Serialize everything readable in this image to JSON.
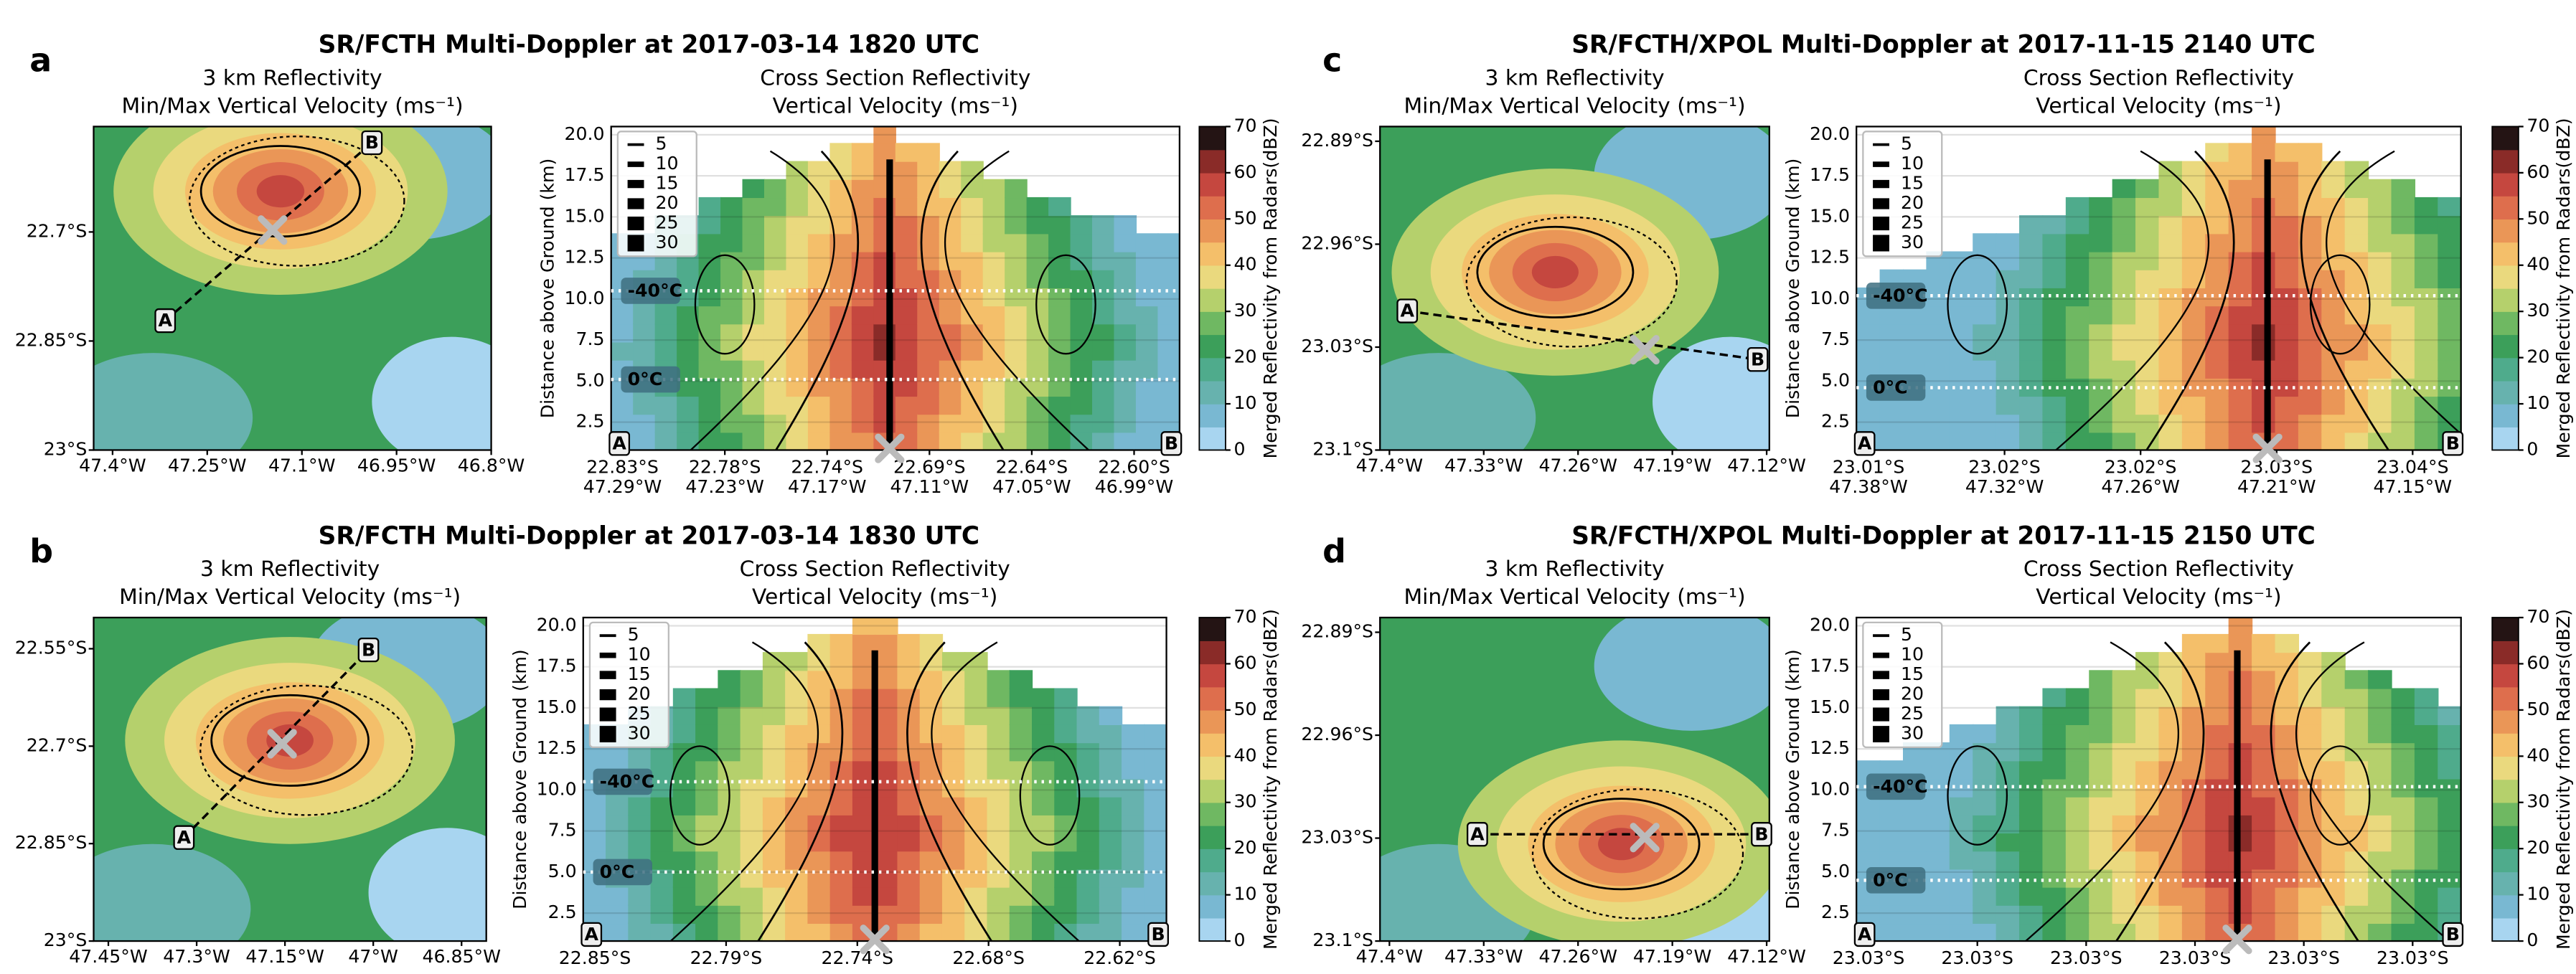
{
  "chart_data": [
    {
      "type": "panel",
      "letter": "a",
      "title": "SR/FCTH Multi-Doppler at 2017-03-14 1820 UTC",
      "map": {
        "subtitle": [
          "3 km Reflectivity",
          "Min/Max Vertical Velocity (ms⁻¹)"
        ],
        "ylim": [
          -23.0,
          -22.555
        ],
        "yticks": [
          {
            "value": -22.7,
            "label": "22.7°S"
          },
          {
            "value": -22.85,
            "label": "22.85°S"
          },
          {
            "value": -23.0,
            "label": "23°S"
          }
        ],
        "xlim": [
          -47.43,
          -46.8
        ],
        "xticks": [
          {
            "value": -47.4,
            "label": "47.4°W"
          },
          {
            "value": -47.25,
            "label": "47.25°W"
          },
          {
            "value": -47.1,
            "label": "47.1°W"
          },
          {
            "value": -46.95,
            "label": "46.95°W"
          },
          {
            "value": -46.8,
            "label": "46.8°W"
          }
        ]
      },
      "section": {
        "subtitle": [
          "Cross Section Reflectivity",
          "Vertical Velocity (ms⁻¹)"
        ],
        "ylabel": "Distance above Ground (km)",
        "ylim": [
          0.8,
          20.5
        ],
        "yticks": [
          2.5,
          {
            "value": 5,
            "label": "5.0"
          },
          7.5,
          {
            "value": 10,
            "label": "10.0"
          },
          12.5,
          {
            "value": 15,
            "label": "15.0"
          },
          17.5,
          {
            "value": 20,
            "label": "20.0"
          }
        ],
        "xticks": [
          {
            "lat": "22.83°S",
            "lon": "47.29°W"
          },
          {
            "lat": "22.78°S",
            "lon": "47.23°W"
          },
          {
            "lat": "22.74°S",
            "lon": "47.17°W"
          },
          {
            "lat": "22.69°S",
            "lon": "47.11°W"
          },
          {
            "lat": "22.64°S",
            "lon": "47.05°W"
          },
          {
            "lat": "22.60°S",
            "lon": "46.99°W"
          }
        ],
        "isotherms": [
          {
            "label": "-40°C",
            "value": 10.5
          },
          {
            "label": "0°C",
            "value": 5.1
          }
        ],
        "legend": [
          5,
          10,
          15,
          20,
          25,
          30
        ]
      },
      "endpoints": [
        "A",
        "B"
      ]
    },
    {
      "type": "panel",
      "letter": "b",
      "title": "SR/FCTH Multi-Doppler at 2017-03-14 1830 UTC",
      "map": {
        "subtitle": [
          "3 km Reflectivity",
          "Min/Max Vertical Velocity (ms⁻¹)"
        ],
        "ylim": [
          -23.0,
          -22.502
        ],
        "yticks": [
          {
            "value": -22.55,
            "label": "22.55°S"
          },
          {
            "value": -22.7,
            "label": "22.7°S"
          },
          {
            "value": -22.85,
            "label": "22.85°S"
          },
          {
            "value": -23.0,
            "label": "23°S"
          }
        ],
        "xlim": [
          -47.475,
          -46.808
        ],
        "xticks": [
          {
            "value": -47.45,
            "label": "47.45°W"
          },
          {
            "value": -47.3,
            "label": "47.3°W"
          },
          {
            "value": -47.15,
            "label": "47.15°W"
          },
          {
            "value": -47.0,
            "label": "47°W"
          },
          {
            "value": -46.85,
            "label": "46.85°W"
          }
        ]
      },
      "section": {
        "subtitle": [
          "Cross Section Reflectivity",
          "Vertical Velocity (ms⁻¹)"
        ],
        "ylabel": "Distance above Ground (km)",
        "ylim": [
          0.8,
          20.5
        ],
        "yticks": [
          2.5,
          {
            "value": 5,
            "label": "5.0"
          },
          7.5,
          {
            "value": 10,
            "label": "10.0"
          },
          12.5,
          {
            "value": 15,
            "label": "15.0"
          },
          17.5,
          {
            "value": 20,
            "label": "20.0"
          }
        ],
        "xticks": [
          {
            "lat": "22.85°S"
          },
          {
            "lat": "22.79°S"
          },
          {
            "lat": "22.74°S"
          },
          {
            "lat": "22.68°S"
          },
          {
            "lat": "22.62°S"
          }
        ],
        "isotherms": [
          {
            "label": "-40°C",
            "value": 10.5
          },
          {
            "label": "0°C",
            "value": 5.0
          }
        ],
        "legend": [
          5,
          10,
          15,
          20,
          25,
          30
        ]
      },
      "endpoints": [
        "A",
        "B"
      ]
    },
    {
      "type": "panel",
      "letter": "c",
      "title": "SR/FCTH/XPOL Multi-Doppler at 2017-11-15 2140 UTC",
      "map": {
        "subtitle": [
          "3 km Reflectivity",
          "Min/Max Vertical Velocity (ms⁻¹)"
        ],
        "ylim": [
          -23.1,
          -22.88
        ],
        "yticks": [
          {
            "value": -22.89,
            "label": "22.89°S"
          },
          {
            "value": -22.96,
            "label": "22.96°S"
          },
          {
            "value": -23.03,
            "label": "23.03°S"
          },
          {
            "value": -23.1,
            "label": "23.1°S"
          }
        ],
        "xlim": [
          -47.407,
          -47.118
        ],
        "xticks": [
          {
            "value": -47.4,
            "label": "47.4°W"
          },
          {
            "value": -47.33,
            "label": "47.33°W"
          },
          {
            "value": -47.26,
            "label": "47.26°W"
          },
          {
            "value": -47.19,
            "label": "47.19°W"
          },
          {
            "value": -47.12,
            "label": "47.12°W"
          }
        ]
      },
      "section": {
        "subtitle": [
          "Cross Section Reflectivity",
          "Vertical Velocity (ms⁻¹)"
        ],
        "ylabel": "Distance above Ground (km)",
        "ylim": [
          0.8,
          20.5
        ],
        "yticks": [
          2.5,
          {
            "value": 5,
            "label": "5.0"
          },
          7.5,
          {
            "value": 10,
            "label": "10.0"
          },
          12.5,
          {
            "value": 15,
            "label": "15.0"
          },
          17.5,
          {
            "value": 20,
            "label": "20.0"
          }
        ],
        "xticks": [
          {
            "lat": "23.01°S",
            "lon": "47.38°W"
          },
          {
            "lat": "23.02°S",
            "lon": "47.32°W"
          },
          {
            "lat": "23.02°S",
            "lon": "47.26°W"
          },
          {
            "lat": "23.03°S",
            "lon": "47.21°W"
          },
          {
            "lat": "23.04°S",
            "lon": "47.15°W"
          }
        ],
        "isotherms": [
          {
            "label": "-40°C",
            "value": 10.2
          },
          {
            "label": "0°C",
            "value": 4.6
          }
        ],
        "legend": [
          5,
          10,
          15,
          20,
          25,
          30
        ]
      },
      "endpoints": [
        "A",
        "B"
      ]
    },
    {
      "type": "panel",
      "letter": "d",
      "title": "SR/FCTH/XPOL Multi-Doppler at 2017-11-15 2150 UTC",
      "map": {
        "subtitle": [
          "3 km Reflectivity",
          "Min/Max Vertical Velocity (ms⁻¹)"
        ],
        "ylim": [
          -23.1,
          -22.88
        ],
        "yticks": [
          {
            "value": -22.89,
            "label": "22.89°S"
          },
          {
            "value": -22.96,
            "label": "22.96°S"
          },
          {
            "value": -23.03,
            "label": "23.03°S"
          },
          {
            "value": -23.1,
            "label": "23.1°S"
          }
        ],
        "xlim": [
          -47.407,
          -47.118
        ],
        "xticks": [
          {
            "value": -47.4,
            "label": "47.4°W"
          },
          {
            "value": -47.33,
            "label": "47.33°W"
          },
          {
            "value": -47.26,
            "label": "47.26°W"
          },
          {
            "value": -47.19,
            "label": "47.19°W"
          },
          {
            "value": -47.12,
            "label": "47.12°W"
          }
        ]
      },
      "section": {
        "subtitle": [
          "Cross Section Reflectivity",
          "Vertical Velocity (ms⁻¹)"
        ],
        "ylabel": "Distance above Ground (km)",
        "ylim": [
          0.8,
          20.5
        ],
        "yticks": [
          2.5,
          {
            "value": 5,
            "label": "5.0"
          },
          7.5,
          {
            "value": 10,
            "label": "10.0"
          },
          12.5,
          {
            "value": 15,
            "label": "15.0"
          },
          17.5,
          {
            "value": 20,
            "label": "20.0"
          }
        ],
        "xticks": [
          {
            "lat": "23.03°S"
          },
          {
            "lat": "23.03°S"
          },
          {
            "lat": "23.03°S"
          },
          {
            "lat": "23.03°S"
          },
          {
            "lat": "23.03°S"
          },
          {
            "lat": "23.03°S"
          }
        ],
        "isotherms": [
          {
            "label": "-40°C",
            "value": 10.2
          },
          {
            "label": "0°C",
            "value": 4.5
          }
        ],
        "legend": [
          5,
          10,
          15,
          20,
          25,
          30
        ]
      },
      "endpoints": [
        "A",
        "B"
      ]
    }
  ],
  "colorbar": {
    "label": "Merged Reflectivity from Radars(dBZ)",
    "ylim": [
      0,
      70
    ],
    "yticks": [
      0,
      10,
      20,
      30,
      40,
      50,
      60,
      70
    ],
    "colors": [
      "#a8d5f0",
      "#79b8d2",
      "#67b2ae",
      "#4fab8c",
      "#3c9f5a",
      "#6fb862",
      "#b5d06c",
      "#ead97e",
      "#f4bf6a",
      "#ea9657",
      "#de6e4d",
      "#c5473f",
      "#8a2b28",
      "#241414"
    ]
  }
}
